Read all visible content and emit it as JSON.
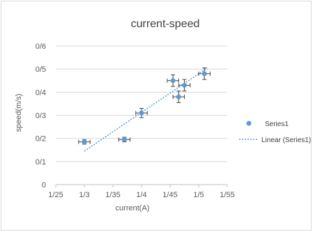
{
  "chart_data": {
    "type": "scatter",
    "title": "current-speed",
    "xlabel": "current(A)",
    "ylabel": "speed(m/s)",
    "xlim": [
      1.25,
      1.55
    ],
    "ylim": [
      0,
      0.6
    ],
    "x_ticks": [
      1.25,
      1.3,
      1.35,
      1.4,
      1.45,
      1.5,
      1.55
    ],
    "x_tick_labels": [
      "1/25",
      "1/3",
      "1/35",
      "1/4",
      "1/45",
      "1/5",
      "1/55"
    ],
    "y_ticks": [
      0,
      0.1,
      0.2,
      0.3,
      0.4,
      0.5,
      0.6
    ],
    "y_tick_labels": [
      "0",
      "0/1",
      "0/2",
      "0/3",
      "0/4",
      "0/5",
      "0/6"
    ],
    "grid": true,
    "legend_position": "right",
    "series": [
      {
        "name": "Series1",
        "color": "#5b9bd5",
        "x": [
          1.3,
          1.37,
          1.4,
          1.455,
          1.465,
          1.475,
          1.51
        ],
        "y": [
          0.185,
          0.195,
          0.31,
          0.45,
          0.38,
          0.43,
          0.48
        ],
        "x_err": [
          0.01,
          0.01,
          0.01,
          0.01,
          0.01,
          0.01,
          0.01
        ],
        "y_err": [
          0.01,
          0.01,
          0.02,
          0.025,
          0.025,
          0.025,
          0.025
        ]
      }
    ],
    "trendline": {
      "name": "Linear (Series1)",
      "color": "#5b9bd5",
      "type": "linear",
      "x": [
        1.3,
        1.515
      ],
      "y": [
        0.145,
        0.505
      ]
    }
  }
}
